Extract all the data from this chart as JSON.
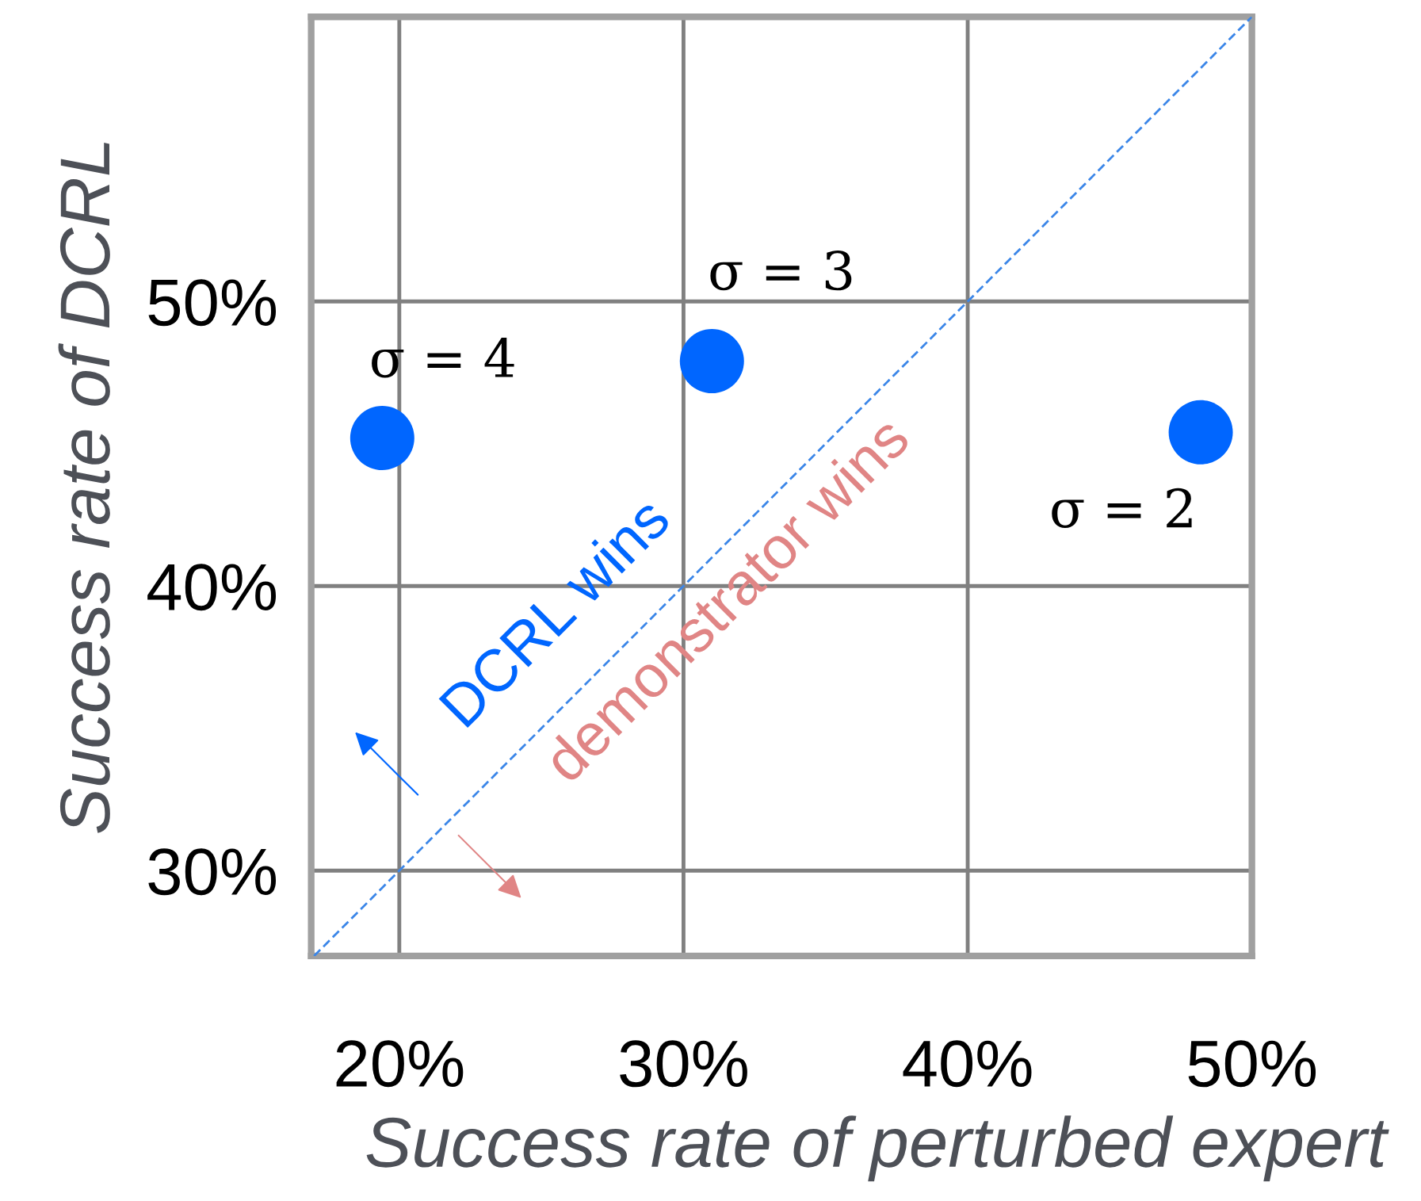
{
  "chart_data": {
    "type": "scatter",
    "xlabel": "Success rate of perturbed expert",
    "ylabel": "Success rate of DCRL",
    "xlim": [
      16.9,
      50
    ],
    "ylim": [
      27,
      60
    ],
    "xticks": [
      {
        "value": 20,
        "label": "20%"
      },
      {
        "value": 30,
        "label": "30%"
      },
      {
        "value": 40,
        "label": "40%"
      },
      {
        "value": 50,
        "label": "50%"
      }
    ],
    "yticks": [
      {
        "value": 30,
        "label": "30%"
      },
      {
        "value": 40,
        "label": "40%"
      },
      {
        "value": 50,
        "label": "50%"
      }
    ],
    "grid": true,
    "series": [
      {
        "marker": "circle",
        "color": "#0066ff",
        "x": [
          19.4,
          31.0,
          48.2
        ],
        "values": [
          45.2,
          47.9,
          45.4
        ]
      },
      {
        "type": "line",
        "color": "#3b86e8",
        "line_style": "dashed",
        "x": [
          17,
          50
        ],
        "values": [
          27,
          60
        ]
      }
    ],
    "annotations": [
      "σ = 4",
      "σ = 3",
      "σ = 2",
      "DCRL wins",
      "demonstrator wins"
    ]
  }
}
